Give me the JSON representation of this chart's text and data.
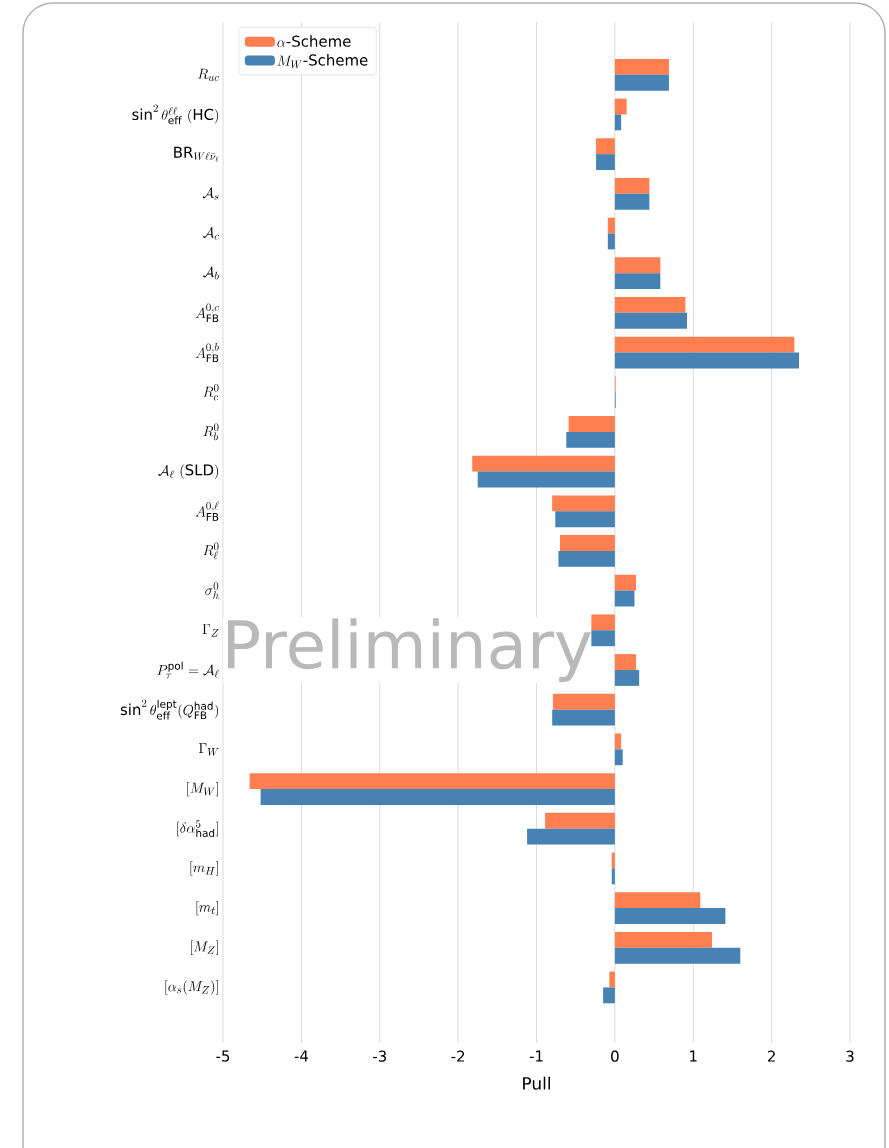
{
  "chart_data": {
    "type": "bar",
    "orientation": "horizontal",
    "xlabel": "Pull",
    "categories": [
      "R_{uc}",
      "\\sin^2\\theta_{\\mathrm{eff}}^{\\ell\\ell}\\ (\\mathrm{HC})",
      "\\mathrm{BR}_{W\\ell\\bar{\\nu}_\\ell}",
      "\\mathcal{A}_s",
      "\\mathcal{A}_c",
      "\\mathcal{A}_b",
      "A_{\\mathrm{FB}}^{0,c}",
      "A_{\\mathrm{FB}}^{0,b}",
      "R_c^0",
      "R_b^0",
      "\\mathcal{A}_\\ell\\ (\\mathrm{SLD})",
      "A_{\\mathrm{FB}}^{0,\\ell}",
      "R_\\ell^0",
      "\\sigma_h^0",
      "\\Gamma_Z",
      "P_\\tau^{\\mathrm{pol}}=\\mathcal{A}_\\ell",
      "\\sin^2\\theta_{\\mathrm{eff}}^{\\mathrm{lept}}(Q_{\\mathrm{FB}}^{\\mathrm{had}})",
      "\\Gamma_W",
      "[M_W]",
      "[\\delta\\alpha_{\\mathrm{had}}^5]",
      "[m_H]",
      "[m_t]",
      "[M_Z]",
      "[\\alpha_s(M_Z)]"
    ],
    "series": [
      {
        "name": "\\alpha\\mbox{-Scheme}",
        "color": "#ff7f50",
        "values": [
          0.69,
          0.15,
          -0.24,
          0.44,
          -0.09,
          0.58,
          0.9,
          2.29,
          0.01,
          -0.59,
          -1.82,
          -0.8,
          -0.7,
          0.27,
          -0.3,
          0.27,
          -0.79,
          0.08,
          -4.66,
          -0.89,
          -0.04,
          1.09,
          1.24,
          -0.07
        ]
      },
      {
        "name": "M_W\\mbox{-Scheme}",
        "color": "#4682b4",
        "values": [
          0.69,
          0.08,
          -0.24,
          0.44,
          -0.09,
          0.58,
          0.92,
          2.35,
          0.01,
          -0.62,
          -1.75,
          -0.76,
          -0.72,
          0.25,
          -0.3,
          0.31,
          -0.8,
          0.1,
          -4.52,
          -1.12,
          -0.04,
          1.41,
          1.6,
          -0.15
        ]
      }
    ],
    "xlim": [
      -5,
      3
    ],
    "xticks": [
      -5,
      -4,
      -3,
      -2,
      -1,
      0,
      1,
      2,
      3
    ],
    "grid": "x",
    "legend": "top left",
    "annotations": [
      "Preliminary"
    ]
  }
}
